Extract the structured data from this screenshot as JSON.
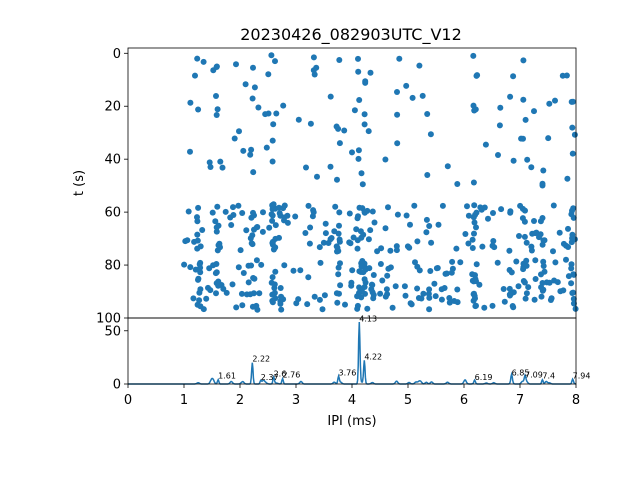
{
  "chart_data": [
    {
      "type": "scatter",
      "title": "20230426_082903UTC_V12",
      "xlabel": "",
      "ylabel": "t (s)",
      "xlim": [
        0,
        8
      ],
      "ylim": [
        100,
        -2
      ],
      "y_inverted": true,
      "grid": false,
      "marker_color": "#1f77b4",
      "y_ticks": [
        "0",
        "20",
        "40",
        "60",
        "80",
        "100"
      ],
      "seed": 12,
      "t_bands": [
        [
          0,
          50,
          120
        ],
        [
          57,
          75,
          200
        ],
        [
          78,
          97,
          240
        ]
      ],
      "x_range": [
        1.0,
        8.0
      ],
      "x_clusters": [
        1.25,
        1.61,
        2.22,
        2.6,
        2.76,
        3.76,
        4.13,
        4.22,
        6.19,
        6.85,
        7.09,
        7.4,
        7.94
      ]
    },
    {
      "type": "line",
      "title": "",
      "xlabel": "IPI (ms)",
      "ylabel": "",
      "xlim": [
        0,
        8
      ],
      "ylim": [
        0,
        62
      ],
      "grid": false,
      "line_color": "#1f77b4",
      "x_ticks": [
        "0",
        "1",
        "2",
        "3",
        "4",
        "5",
        "6",
        "7",
        "8"
      ],
      "y_ticks": [
        "0",
        "50"
      ],
      "peaks": [
        {
          "x": 1.61,
          "y": 4,
          "label": "1.61"
        },
        {
          "x": 2.22,
          "y": 20,
          "label": "2.22"
        },
        {
          "x": 2.37,
          "y": 3,
          "label": "2.37"
        },
        {
          "x": 2.6,
          "y": 6,
          "label": "2.6"
        },
        {
          "x": 2.76,
          "y": 5,
          "label": "2.76"
        },
        {
          "x": 3.76,
          "y": 7,
          "label": "3.76"
        },
        {
          "x": 4.13,
          "y": 58,
          "label": "4.13"
        },
        {
          "x": 4.22,
          "y": 22,
          "label": "4.22"
        },
        {
          "x": 6.19,
          "y": 3,
          "label": "6.19"
        },
        {
          "x": 6.85,
          "y": 7,
          "label": "6.85"
        },
        {
          "x": 7.09,
          "y": 5,
          "label": "7.09"
        },
        {
          "x": 7.4,
          "y": 4,
          "label": "7.4"
        },
        {
          "x": 7.94,
          "y": 4,
          "label": "7.94"
        }
      ]
    }
  ]
}
